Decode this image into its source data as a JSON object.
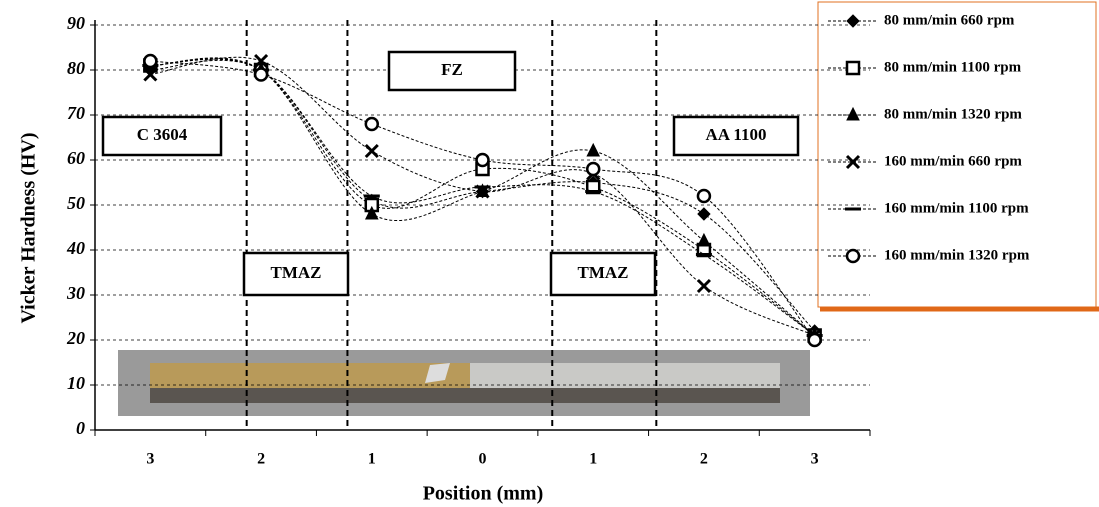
{
  "chart_data": {
    "type": "line",
    "xlabel": "Position (mm)",
    "ylabel": "Vicker Hardness (HV)",
    "categories": [
      "3",
      "2",
      "1",
      "0",
      "1",
      "2",
      "3"
    ],
    "ylim": [
      0,
      90
    ],
    "yticks": [
      0,
      10,
      20,
      30,
      40,
      50,
      60,
      70,
      80,
      90
    ],
    "grid": true,
    "annotations": [
      "C 3604",
      "FZ",
      "AA 1100",
      "TMAZ",
      "TMAZ"
    ],
    "legend": "upper right",
    "series": [
      {
        "name": "80 mm/min 660 rpm",
        "color": "#000000",
        "marker": "diamond",
        "values": [
          80,
          80,
          51,
          53,
          55,
          48,
          22
        ]
      },
      {
        "name": "80 mm/min 1100 rpm",
        "color": "#000000",
        "marker": "square",
        "values": [
          81,
          80,
          50,
          58,
          54,
          40,
          21
        ]
      },
      {
        "name": "80 mm/min 1320 rpm",
        "color": "#000000",
        "marker": "triangle",
        "values": [
          81,
          80,
          48,
          53,
          62,
          42,
          21
        ]
      },
      {
        "name": "160 mm/min 660 rpm",
        "color": "#000000",
        "marker": "x",
        "values": [
          79,
          82,
          62,
          53,
          57,
          32,
          21
        ]
      },
      {
        "name": "160 mm/min 1100 rpm",
        "color": "#000000",
        "marker": "dash",
        "values": [
          81,
          80,
          52,
          54,
          53,
          39,
          21
        ]
      },
      {
        "name": "160 mm/min 1320 rpm",
        "color": "#000000",
        "marker": "circle",
        "values": [
          82,
          79,
          68,
          60,
          58,
          52,
          20
        ]
      }
    ]
  }
}
